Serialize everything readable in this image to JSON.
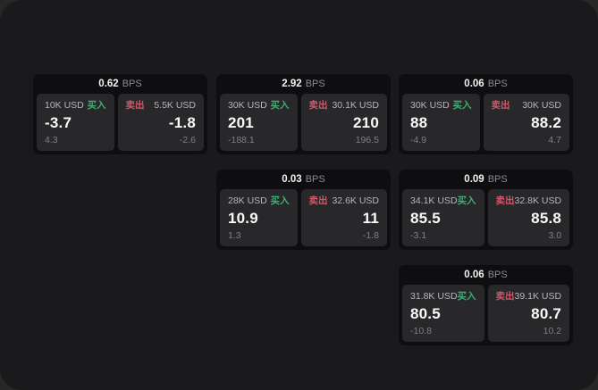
{
  "labels": {
    "bps_unit": "BPS",
    "buy": "买入",
    "sell": "卖出"
  },
  "colors": {
    "buy": "#3fae73",
    "sell": "#d4566a",
    "panel_bg": "#1a1a1c",
    "card_bg": "#0e0e10",
    "subcard_bg": "#28282b"
  },
  "cards": [
    {
      "pos": "r1 c1",
      "bps": "0.62",
      "buy": {
        "amount": "10K USD",
        "price": "-3.7",
        "delta": "4.3"
      },
      "sell": {
        "amount": "5.5K USD",
        "price": "-1.8",
        "delta": "-2.6"
      }
    },
    {
      "pos": "r1 c2",
      "bps": "2.92",
      "buy": {
        "amount": "30K USD",
        "price": "201",
        "delta": "-188.1"
      },
      "sell": {
        "amount": "30.1K USD",
        "price": "210",
        "delta": "196.5"
      }
    },
    {
      "pos": "r1 c3",
      "bps": "0.06",
      "buy": {
        "amount": "30K USD",
        "price": "88",
        "delta": "-4.9"
      },
      "sell": {
        "amount": "30K USD",
        "price": "88.2",
        "delta": "4.7"
      }
    },
    {
      "pos": "r2 c2",
      "bps": "0.03",
      "buy": {
        "amount": "28K USD",
        "price": "10.9",
        "delta": "1.3"
      },
      "sell": {
        "amount": "32.6K USD",
        "price": "11",
        "delta": "-1.8"
      }
    },
    {
      "pos": "r2 c3",
      "bps": "0.09",
      "buy": {
        "amount": "34.1K USD",
        "price": "85.5",
        "delta": "-3.1"
      },
      "sell": {
        "amount": "32.8K USD",
        "price": "85.8",
        "delta": "3.0"
      }
    },
    {
      "pos": "r3 c3",
      "bps": "0.06",
      "buy": {
        "amount": "31.8K USD",
        "price": "80.5",
        "delta": "-10.8"
      },
      "sell": {
        "amount": "39.1K USD",
        "price": "80.7",
        "delta": "10.2"
      }
    }
  ]
}
